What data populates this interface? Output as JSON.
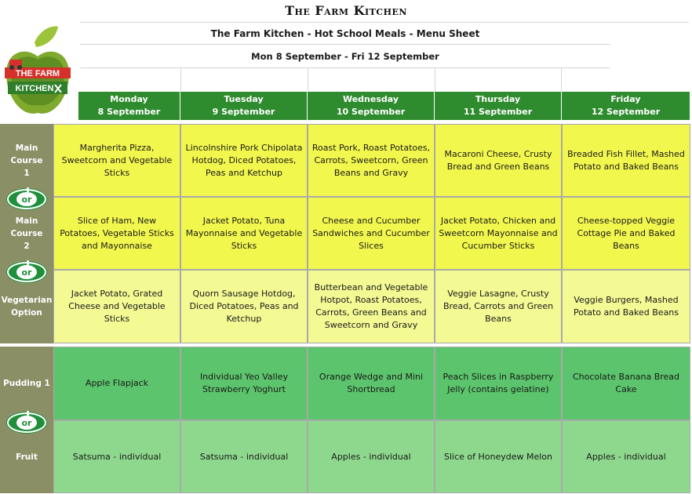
{
  "header": {
    "title": "The Farm Kitchen",
    "subtitle": "The Farm Kitchen - Hot School Meals - Menu Sheet",
    "date_range": "Mon 8 September - Fri 12 September"
  },
  "logo": {
    "line1": "THE FARM",
    "line2": "KITCHEN"
  },
  "days": [
    {
      "name": "Monday",
      "date": "8 September"
    },
    {
      "name": "Tuesday",
      "date": "9 September"
    },
    {
      "name": "Wednesday",
      "date": "10 September"
    },
    {
      "name": "Thursday",
      "date": "11 September"
    },
    {
      "name": "Friday",
      "date": "12 September"
    }
  ],
  "rows": [
    {
      "label_line1": "Main Course",
      "label_line2": "1",
      "items": [
        "Margherita Pizza, Sweetcorn and Vegetable Sticks",
        "Lincolnshire Pork Chipolata Hotdog, Diced Potatoes, Peas and Ketchup",
        "Roast Pork, Roast Potatoes, Carrots, Sweetcorn, Green Beans and Gravy",
        "Macaroni Cheese, Crusty Bread and Green Beans",
        "Breaded Fish Fillet, Mashed Potato and Baked Beans"
      ]
    },
    {
      "label_line1": "Main Course",
      "label_line2": "2",
      "items": [
        "Slice of Ham, New Potatoes, Vegetable Sticks and Mayonnaise",
        "Jacket Potato, Tuna Mayonnaise and Vegetable Sticks",
        "Cheese and Cucumber Sandwiches and Cucumber Slices",
        "Jacket Potato, Chicken and Sweetcorn Mayonnaise and Cucumber Sticks",
        "Cheese-topped Veggie Cottage Pie and Baked Beans"
      ]
    },
    {
      "label_line1": "Vegetarian",
      "label_line2": "Option",
      "items": [
        "Jacket Potato, Grated Cheese and Vegetable Sticks",
        "Quorn Sausage Hotdog, Diced Potatoes, Peas and Ketchup",
        "Butterbean and Vegetable Hotpot, Roast Potatoes, Carrots, Green Beans and Sweetcorn and Gravy",
        "Veggie Lasagne, Crusty Bread, Carrots and Green Beans",
        "Veggie Burgers, Mashed Potato and Baked Beans"
      ]
    },
    {
      "label_line1": "Pudding 1",
      "label_line2": "",
      "items": [
        "Apple Flapjack",
        "Individual Yeo Valley Strawberry Yoghurt",
        "Orange Wedge and Mini Shortbread",
        "Peach Slices in Raspberry Jelly (contains gelatine)",
        "Chocolate Banana Bread Cake"
      ]
    },
    {
      "label_line1": "Fruit",
      "label_line2": "",
      "items": [
        "Satsuma - individual",
        "Satsuma - individual",
        "Apples - individual",
        "Slice of Honeydew Melon",
        "Apples - individual"
      ]
    }
  ],
  "or_badge": "or",
  "colors": {
    "header_green": "#2e8b2e",
    "label_olive": "#8a8f66",
    "main_yellow": "#f2f74d",
    "veg_yellow": "#f3f993",
    "pudding_green": "#5cc46c",
    "fruit_green": "#8ed88e"
  }
}
